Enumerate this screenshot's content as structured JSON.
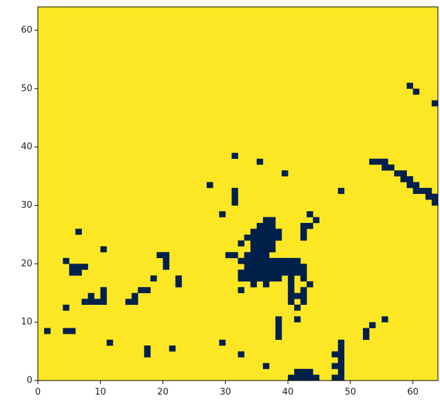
{
  "chart_data": {
    "type": "heatmap",
    "background": "#fde725",
    "color": "#00204c",
    "xlim": [
      0,
      64
    ],
    "ylim": [
      0,
      64
    ],
    "xticks": [
      0,
      10,
      20,
      30,
      40,
      50,
      60
    ],
    "yticks": [
      0,
      10,
      20,
      30,
      40,
      50,
      60
    ],
    "x": [
      1,
      4,
      5,
      4,
      4,
      5,
      6,
      7,
      5,
      6,
      6,
      7,
      8,
      9,
      8,
      10,
      10,
      10,
      10,
      11,
      14,
      15,
      15,
      16,
      17,
      17,
      17,
      18,
      19,
      20,
      20,
      20,
      21,
      22,
      22,
      27,
      29,
      29,
      31,
      31,
      31,
      31,
      32,
      35,
      39,
      36,
      38,
      38,
      38,
      38,
      41,
      42,
      42,
      42,
      43,
      44,
      43,
      48,
      47,
      48,
      48,
      47,
      48,
      48,
      47,
      48,
      48,
      48,
      52,
      52,
      53,
      55,
      40,
      41,
      42,
      43,
      44,
      41,
      42,
      43,
      53,
      54,
      55,
      55,
      56,
      57,
      58,
      58,
      59,
      59,
      60,
      61,
      62,
      62,
      63,
      63,
      60,
      59,
      60,
      63,
      36,
      37,
      35,
      36,
      37,
      34,
      35,
      36,
      37,
      38,
      33,
      34,
      35,
      36,
      37,
      38,
      32,
      34,
      35,
      36,
      37,
      34,
      35,
      36,
      37,
      30,
      31,
      33,
      34,
      35,
      36,
      32,
      33,
      34,
      35,
      36,
      37,
      38,
      39,
      40,
      41,
      33,
      34,
      35,
      36,
      37,
      38,
      39,
      40,
      41,
      42,
      32,
      33,
      34,
      35,
      36,
      37,
      38,
      39,
      40,
      41,
      42,
      32,
      33,
      34,
      35,
      36,
      37,
      38,
      40,
      42,
      34,
      36,
      40,
      43,
      32,
      40,
      42,
      40,
      41,
      42,
      40,
      42,
      41
    ],
    "y": [
      8,
      8,
      8,
      12,
      20,
      19,
      19,
      19,
      18,
      18,
      25,
      13,
      13,
      13,
      14,
      14,
      13,
      15,
      22,
      6,
      13,
      13,
      14,
      15,
      15,
      4,
      5,
      17,
      21,
      21,
      20,
      19,
      5,
      16,
      17,
      33,
      6,
      28,
      38,
      30,
      31,
      32,
      4,
      37,
      35,
      2,
      7,
      8,
      9,
      10,
      10,
      24,
      25,
      26,
      26,
      27,
      28,
      32,
      0,
      0,
      1,
      2,
      2,
      3,
      4,
      4,
      5,
      6,
      7,
      8,
      9,
      10,
      0,
      0,
      0,
      0,
      0,
      1,
      1,
      1,
      37,
      37,
      37,
      36,
      36,
      35,
      35,
      34,
      34,
      33,
      33,
      32,
      32,
      31,
      31,
      30,
      32,
      50,
      49,
      47,
      27,
      27,
      26,
      26,
      26,
      25,
      25,
      25,
      25,
      25,
      24,
      24,
      24,
      24,
      24,
      24,
      23,
      23,
      23,
      23,
      23,
      22,
      22,
      22,
      22,
      21,
      21,
      21,
      21,
      21,
      21,
      20,
      20,
      20,
      20,
      20,
      20,
      20,
      20,
      20,
      20,
      19,
      19,
      19,
      19,
      19,
      19,
      19,
      19,
      19,
      19,
      18,
      18,
      18,
      18,
      18,
      18,
      18,
      18,
      18,
      18,
      18,
      17,
      17,
      17,
      17,
      17,
      17,
      17,
      17,
      17,
      16,
      16,
      16,
      16,
      15,
      15,
      15,
      14,
      14,
      14,
      13,
      13,
      12
    ]
  }
}
